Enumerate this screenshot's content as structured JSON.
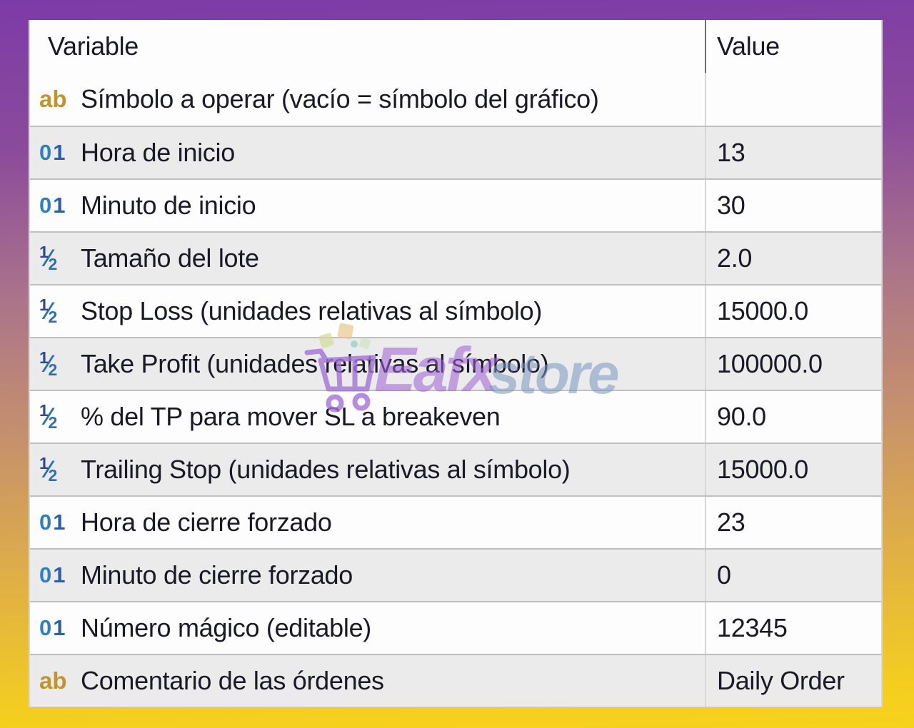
{
  "header": {
    "variable_label": "Variable",
    "value_label": "Value"
  },
  "parameters": [
    {
      "icon": "ab",
      "label": "Símbolo a operar (vacío = símbolo del gráfico)",
      "value": ""
    },
    {
      "icon": "01",
      "label": "Hora de inicio",
      "value": "13"
    },
    {
      "icon": "01",
      "label": "Minuto de inicio",
      "value": "30"
    },
    {
      "icon": "half",
      "label": "Tamaño del lote",
      "value": "2.0"
    },
    {
      "icon": "half",
      "label": "Stop Loss (unidades relativas al símbolo)",
      "value": "15000.0"
    },
    {
      "icon": "half",
      "label": "Take Profit (unidades relativas al símbolo)",
      "value": "100000.0"
    },
    {
      "icon": "half",
      "label": "% del TP para mover SL a breakeven",
      "value": "90.0"
    },
    {
      "icon": "half",
      "label": "Trailing Stop (unidades relativas al símbolo)",
      "value": "15000.0"
    },
    {
      "icon": "01",
      "label": "Hora de cierre forzado",
      "value": "23"
    },
    {
      "icon": "01",
      "label": "Minuto de cierre forzado",
      "value": "0"
    },
    {
      "icon": "01",
      "label": "Número mágico (editable)",
      "value": "12345"
    },
    {
      "icon": "ab",
      "label": "Comentario de las órdenes",
      "value": "Daily Order"
    }
  ],
  "icon_legend": {
    "ab": "text-param-icon",
    "01": "integer-param-icon",
    "half": "double-param-icon"
  },
  "watermark": {
    "cart_icon": "shopping-cart-icon",
    "brand_first": "Eafx",
    "brand_second": "store"
  },
  "colors": {
    "background_top": "#7c3ba7",
    "background_middle": "#c6916c",
    "background_bottom": "#f6d21c",
    "row_base": "#fdfdfd",
    "row_alt": "#ebebeb",
    "separator": "#bfbfbf",
    "text": "#1a1a26",
    "icon_text_param": "#c3932c",
    "icon_integer_param": "#2f7fc0",
    "icon_double_param": "#2e6fae",
    "watermark_purple": "#9e5fd7",
    "watermark_blue": "#7898c0"
  }
}
